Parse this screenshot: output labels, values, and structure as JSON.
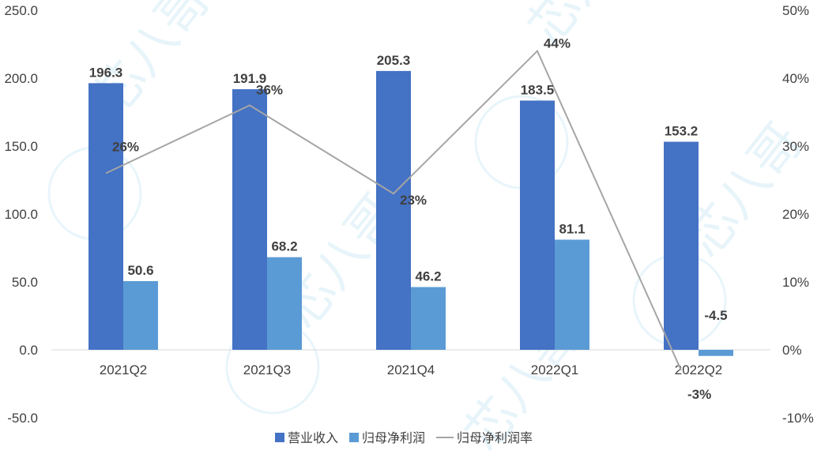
{
  "chart_data": {
    "type": "bar",
    "categories": [
      "2021Q2",
      "2021Q3",
      "2021Q4",
      "2022Q1",
      "2022Q2"
    ],
    "series": [
      {
        "name": "营业收入",
        "type": "bar",
        "axis": "left",
        "color": "#4472C4",
        "values": [
          196.3,
          191.9,
          205.3,
          183.5,
          153.2
        ]
      },
      {
        "name": "归母净利润",
        "type": "bar",
        "axis": "left",
        "color": "#5B9BD5",
        "values": [
          50.6,
          68.2,
          46.2,
          81.1,
          -4.5
        ]
      },
      {
        "name": "归母净利润率",
        "type": "line",
        "axis": "right",
        "color": "#A5A5A5",
        "values": [
          26,
          36,
          23,
          44,
          -3
        ]
      }
    ],
    "left_axis": {
      "min": -50,
      "max": 250,
      "ticks": [
        "-50.0",
        "0.0",
        "50.0",
        "100.0",
        "150.0",
        "200.0",
        "250.0"
      ]
    },
    "right_axis": {
      "min": -10,
      "max": 50,
      "ticks": [
        "-10%",
        "0%",
        "10%",
        "20%",
        "30%",
        "40%",
        "50%"
      ]
    },
    "bar_labels": [
      [
        "196.3",
        "191.9",
        "205.3",
        "183.5",
        "153.2"
      ],
      [
        "50.6",
        "68.2",
        "46.2",
        "81.1",
        "-4.5"
      ]
    ],
    "line_labels": [
      "26%",
      "36%",
      "23%",
      "44%",
      "-3%"
    ],
    "legend_position": "bottom",
    "grid": false
  },
  "watermark": "芯八哥"
}
